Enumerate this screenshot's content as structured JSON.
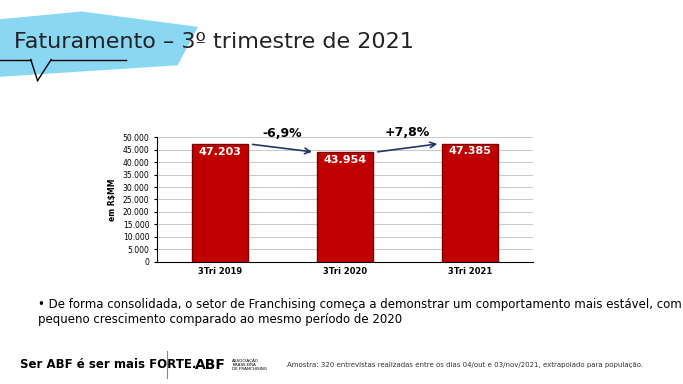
{
  "chart_data": {
    "type": "bar",
    "title": "Faturamento – 3º trimestre de 2021",
    "y_label": "em R$MM",
    "categories": [
      "3Tri 2019",
      "3Tri 2020",
      "3Tri 2021"
    ],
    "values": [
      47203,
      43954,
      47385
    ],
    "value_labels": [
      "47.203",
      "43.954",
      "47.385"
    ],
    "data_labels": true,
    "color": "#c00000",
    "ylim": [
      0,
      50000
    ],
    "yticks": [
      0,
      {
        "value": 5000,
        "label": "5.000"
      },
      {
        "value": 10000,
        "label": "10.000"
      },
      {
        "value": 15000,
        "label": "15.000"
      },
      {
        "value": 20000,
        "label": "20.000"
      },
      {
        "value": 25000,
        "label": "25.000"
      },
      {
        "value": 30000,
        "label": "30.000"
      },
      {
        "value": 35000,
        "label": "35.000"
      },
      {
        "value": 40000,
        "label": "40.000"
      },
      {
        "value": 45000,
        "label": "45.000"
      },
      {
        "value": 50000,
        "label": "50.000"
      }
    ],
    "grid": true,
    "annotations": [
      {
        "text": "-6,9%",
        "from": "3Tri 2019",
        "to": "3Tri 2020"
      },
      {
        "text": "+7,8%",
        "from": "3Tri 2020",
        "to": "3Tri 2021"
      }
    ]
  },
  "slide": {
    "bullet": "• De forma consolidada, o setor de Franchising começa a demonstrar um comportamento mais estável, com pequeno crescimento comparado ao mesmo período de 2020",
    "slogan": "Ser ABF é ser mais FORTE.",
    "logo": "ABF",
    "logo_caption": [
      "ASSOCIAÇÃO",
      "BRASILEIRA",
      "DE FRANCHISING"
    ],
    "sample_note": "Amostra: 320 entrevistas realizadas entre os dias 04/out e 03/nov/2021, extrapolado para população."
  }
}
